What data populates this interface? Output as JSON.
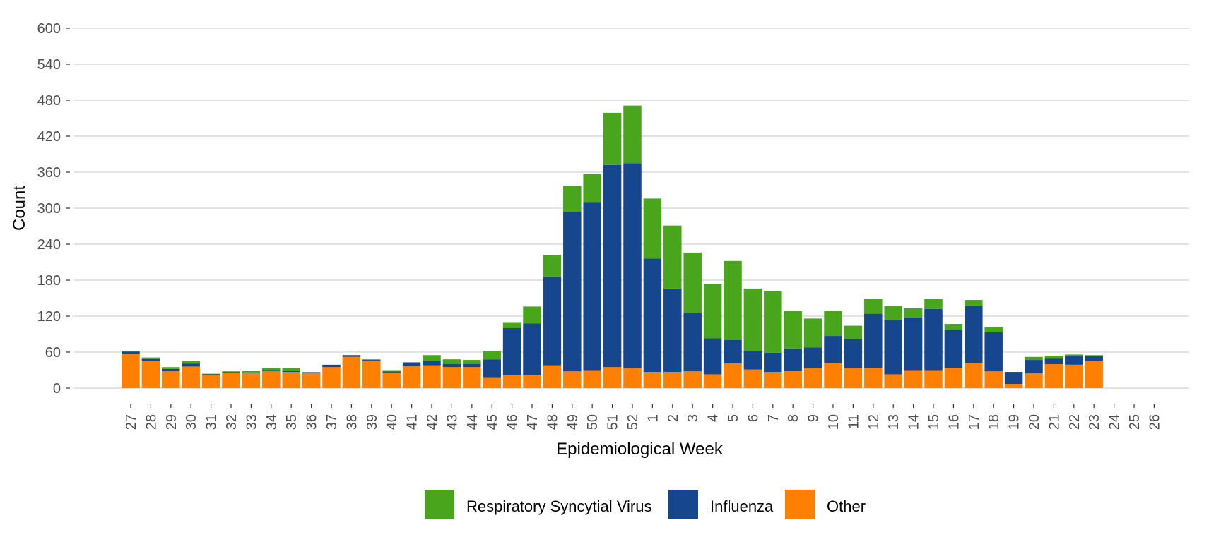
{
  "chart_data": {
    "type": "bar",
    "stacked": true,
    "xlabel": "Epidemiological Week",
    "ylabel": "Count",
    "ylim": [
      0,
      600
    ],
    "yticks": [
      0,
      60,
      120,
      180,
      240,
      300,
      360,
      420,
      480,
      540,
      600
    ],
    "grid": "horizontal",
    "legend_position": "bottom",
    "categories": [
      "27",
      "28",
      "29",
      "30",
      "31",
      "32",
      "33",
      "34",
      "35",
      "36",
      "37",
      "38",
      "39",
      "40",
      "41",
      "42",
      "43",
      "44",
      "45",
      "46",
      "47",
      "48",
      "49",
      "50",
      "51",
      "52",
      "1",
      "2",
      "3",
      "4",
      "5",
      "6",
      "7",
      "8",
      "9",
      "10",
      "11",
      "12",
      "13",
      "14",
      "15",
      "16",
      "17",
      "18",
      "19",
      "20",
      "21",
      "22",
      "23",
      "24",
      "25",
      "26"
    ],
    "series": [
      {
        "name": "Other",
        "color": "#FF7F00",
        "values": [
          57,
          45,
          28,
          36,
          22,
          26,
          25,
          28,
          27,
          25,
          35,
          52,
          45,
          26,
          37,
          38,
          35,
          35,
          18,
          22,
          22,
          38,
          28,
          30,
          35,
          33,
          27,
          27,
          28,
          23,
          41,
          31,
          27,
          29,
          33,
          42,
          33,
          34,
          23,
          30,
          30,
          34,
          42,
          28,
          7,
          25,
          40,
          39,
          45,
          0,
          0,
          0
        ]
      },
      {
        "name": "Influenza",
        "color": "#16478E",
        "values": [
          4,
          4,
          4,
          5,
          1,
          1,
          1,
          2,
          2,
          1,
          4,
          3,
          2,
          2,
          6,
          7,
          5,
          5,
          30,
          78,
          86,
          148,
          266,
          280,
          337,
          342,
          189,
          139,
          97,
          60,
          39,
          31,
          32,
          37,
          35,
          45,
          49,
          90,
          90,
          88,
          102,
          63,
          95,
          65,
          20,
          22,
          10,
          15,
          8,
          0,
          0,
          0
        ]
      },
      {
        "name": "Respiratory Syncytial Virus",
        "color": "#48A51C",
        "values": [
          1,
          2,
          3,
          4,
          1,
          1,
          3,
          3,
          5,
          1,
          0,
          0,
          1,
          2,
          0,
          10,
          8,
          7,
          14,
          10,
          28,
          36,
          43,
          47,
          87,
          96,
          100,
          105,
          101,
          91,
          132,
          104,
          103,
          63,
          48,
          42,
          22,
          25,
          24,
          15,
          17,
          10,
          10,
          9,
          0,
          5,
          4,
          2,
          2,
          0,
          0,
          0
        ]
      }
    ],
    "legend": [
      "Respiratory Syncytial Virus",
      "Influenza",
      "Other"
    ]
  }
}
